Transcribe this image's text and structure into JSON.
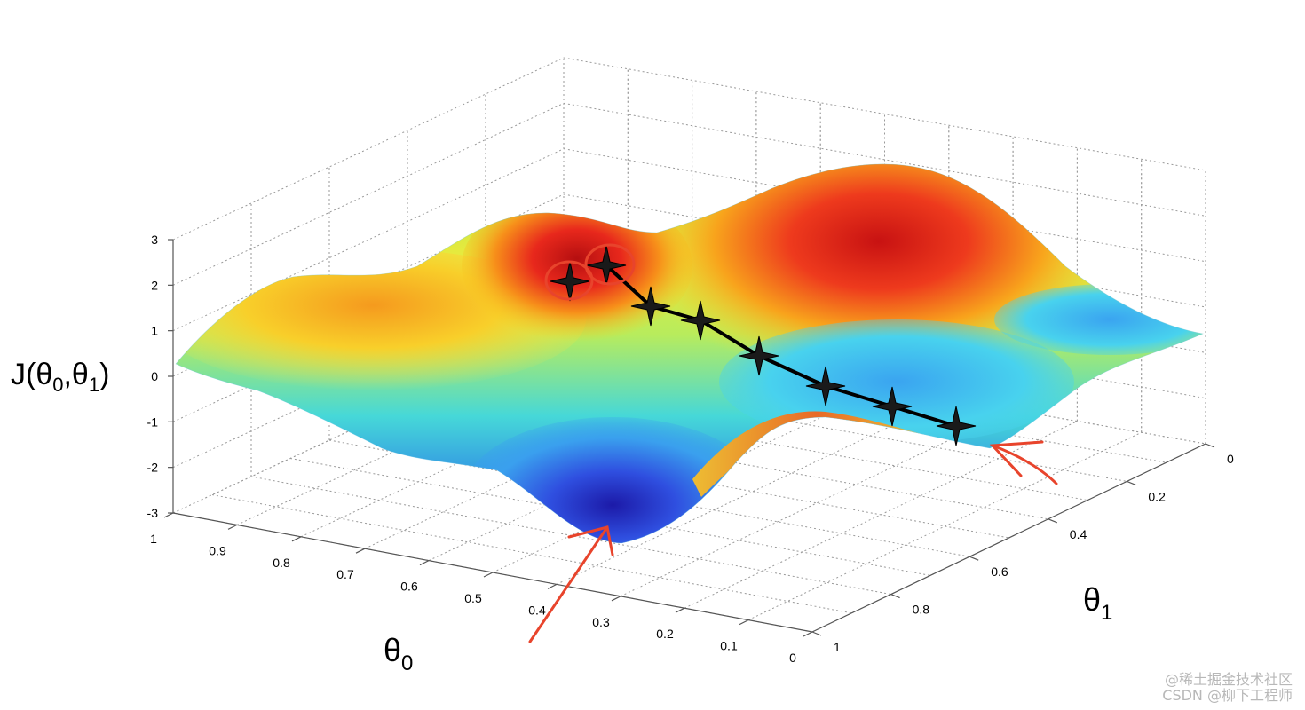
{
  "chart_data": {
    "type": "surface",
    "axes": {
      "z": {
        "label": "J(θ0,θ1)",
        "ticks": [
          "3",
          "2",
          "1",
          "0",
          "-1",
          "-2",
          "-3"
        ],
        "range": [
          -3,
          3
        ]
      },
      "theta0": {
        "label": "θ0",
        "ticks": [
          "1",
          "0.9",
          "0.8",
          "0.7",
          "0.6",
          "0.5",
          "0.4",
          "0.3",
          "0.2",
          "0.1",
          "0"
        ],
        "range": [
          0,
          1
        ]
      },
      "theta1": {
        "label": "θ1",
        "ticks": [
          "0",
          "0.2",
          "0.4",
          "0.6",
          "0.8",
          "1"
        ],
        "range": [
          0,
          1
        ]
      }
    },
    "grid": true,
    "colormap": "jet",
    "path": {
      "marker": "star",
      "color": "#000000"
    },
    "annotations": {
      "circle_color": "#e8442c",
      "arrow_color": "#e8442c"
    }
  },
  "watermark": {
    "line1": "@稀土掘金技术社区",
    "line2": "CSDN @柳下工程师"
  }
}
